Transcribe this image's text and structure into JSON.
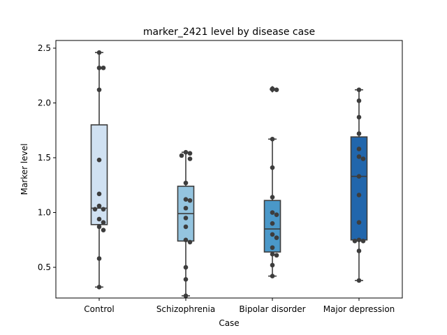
{
  "chart_data": {
    "type": "box",
    "title": "marker_2421 level by disease case",
    "xlabel": "Case",
    "ylabel": "Marker level",
    "ylim": [
      0.22,
      2.57
    ],
    "yticks": [
      0.5,
      1.0,
      1.5,
      2.0,
      2.5
    ],
    "ytick_labels": [
      "0.5",
      "1.0",
      "1.5",
      "2.0",
      "2.5"
    ],
    "grid": false,
    "legend": false,
    "categories": [
      "Control",
      "Schizophrenia",
      "Bipolar disorder",
      "Major depression"
    ],
    "colors": [
      "#d0e1f2",
      "#94c4df",
      "#4a98c9",
      "#2166ac"
    ],
    "boxes": [
      {
        "q1": 0.89,
        "median": 1.04,
        "q3": 1.8,
        "whisker_low": 0.32,
        "whisker_high": 2.46,
        "outliers": []
      },
      {
        "q1": 0.74,
        "median": 0.99,
        "q3": 1.24,
        "whisker_low": 0.24,
        "whisker_high": 1.55,
        "outliers": []
      },
      {
        "q1": 0.64,
        "median": 0.85,
        "q3": 1.11,
        "whisker_low": 0.42,
        "whisker_high": 1.67,
        "outliers": [
          2.12,
          2.13
        ]
      },
      {
        "q1": 0.75,
        "median": 1.33,
        "q3": 1.69,
        "whisker_low": 0.38,
        "whisker_high": 2.12,
        "outliers": []
      }
    ],
    "points": [
      [
        2.46,
        2.32,
        2.32,
        2.12,
        1.48,
        1.17,
        1.06,
        1.03,
        1.03,
        0.94,
        0.91,
        0.87,
        0.84,
        0.58,
        0.32
      ],
      [
        1.55,
        1.54,
        1.52,
        1.49,
        1.27,
        1.12,
        1.11,
        1.04,
        0.95,
        0.87,
        0.75,
        0.73,
        0.5,
        0.39,
        0.24
      ],
      [
        2.13,
        2.12,
        1.67,
        1.41,
        1.14,
        1.0,
        0.98,
        0.9,
        0.8,
        0.77,
        0.68,
        0.62,
        0.61,
        0.52,
        0.42
      ],
      [
        2.12,
        2.02,
        1.87,
        1.72,
        1.58,
        1.51,
        1.49,
        1.33,
        1.16,
        0.91,
        0.75,
        0.74,
        0.74,
        0.65,
        0.38
      ]
    ]
  }
}
